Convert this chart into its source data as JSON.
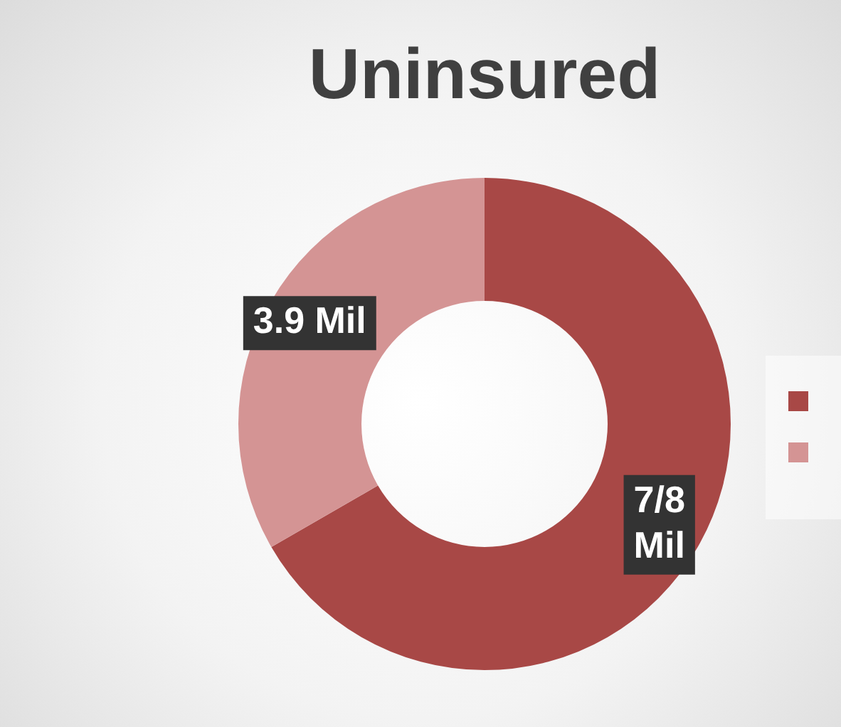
{
  "chart_data": {
    "type": "donut",
    "title": "Uninsured",
    "categories": [
      null,
      null
    ],
    "values": [
      7.8,
      3.9
    ],
    "value_labels": [
      "7/8 Mil",
      "3.9 Mil"
    ],
    "colors": [
      "#a84846",
      "#d49494"
    ]
  }
}
